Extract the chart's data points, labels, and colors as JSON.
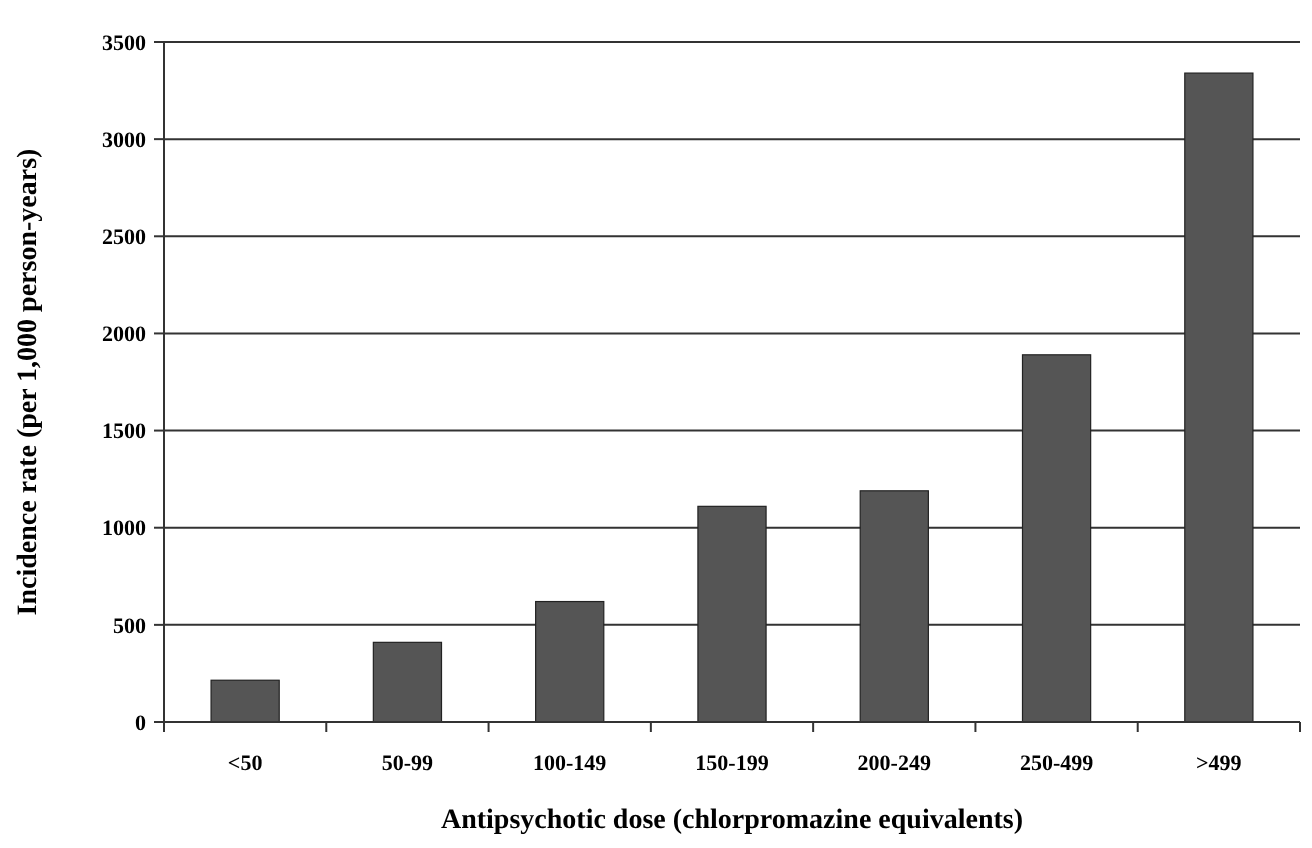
{
  "chart_data": {
    "type": "bar",
    "xlabel": "Antipsychotic dose (chlorpromazine equivalents)",
    "ylabel": "Incidence rate (per 1,000 person-years)",
    "categories": [
      "<50",
      "50-99",
      "100-149",
      "150-199",
      "200-249",
      "250-499",
      ">499"
    ],
    "values": [
      215,
      410,
      620,
      1110,
      1190,
      1890,
      3340
    ],
    "color": "#555555",
    "ylim": [
      0,
      3500
    ],
    "yticks": [
      0,
      500,
      1000,
      1500,
      2000,
      2500,
      3000,
      3500
    ],
    "grid": "y"
  }
}
